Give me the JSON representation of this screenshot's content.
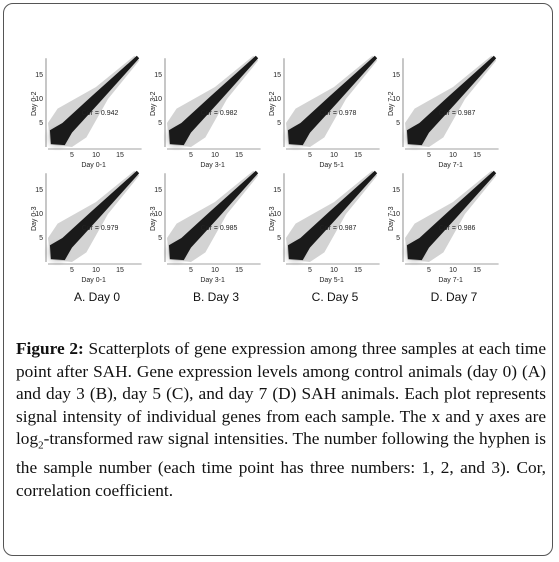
{
  "figure": {
    "panels": [
      {
        "ylabel": "Day 0-2",
        "xlabel": "Day 0-1",
        "cor": "Cor = 0.942",
        "xticks": [
          5,
          10,
          15
        ],
        "yticks": [
          5,
          10,
          15
        ]
      },
      {
        "ylabel": "Day 3-2",
        "xlabel": "Day 3-1",
        "cor": "Cor = 0.982",
        "xticks": [
          5,
          10,
          15
        ],
        "yticks": [
          5,
          10,
          15
        ]
      },
      {
        "ylabel": "Day 5-2",
        "xlabel": "Day 5-1",
        "cor": "Cor = 0.978",
        "xticks": [
          5,
          10,
          15
        ],
        "yticks": [
          5,
          10,
          15
        ]
      },
      {
        "ylabel": "Day 7-2",
        "xlabel": "Day 7-1",
        "cor": "Cor = 0.987",
        "xticks": [
          5,
          10,
          15
        ],
        "yticks": [
          5,
          10,
          15
        ]
      },
      {
        "ylabel": "Day 0-3",
        "xlabel": "Day 0-1",
        "cor": "Cor = 0.979",
        "xticks": [
          5,
          10,
          15
        ],
        "yticks": [
          5,
          10,
          15
        ]
      },
      {
        "ylabel": "Day 3-3",
        "xlabel": "Day 3-1",
        "cor": "Cor = 0.985",
        "xticks": [
          5,
          10,
          15
        ],
        "yticks": [
          5,
          10,
          15
        ]
      },
      {
        "ylabel": "Day 5-3",
        "xlabel": "Day 5-1",
        "cor": "Cor = 0.987",
        "xticks": [
          5,
          10,
          15
        ],
        "yticks": [
          5,
          10,
          15
        ]
      },
      {
        "ylabel": "Day 7-3",
        "xlabel": "Day 7-1",
        "cor": "Cor = 0.986",
        "xticks": [
          5,
          10,
          15
        ],
        "yticks": [
          5,
          10,
          15
        ]
      }
    ],
    "column_labels": [
      "A. Day 0",
      "B. Day 3",
      "C. Day 5",
      "D. Day 7"
    ]
  },
  "caption": {
    "label": "Figure 2:",
    "text_before": " Scatterplots of gene expression among three samples at each time point after SAH. Gene expression levels among control animals (day 0) (A) and day 3 (B), day 5 (C), and day 7 (D) SAH animals. Each plot represents signal intensity of individual genes from each sample. The x and y axes are log",
    "subscript": "2",
    "text_after": "-transformed raw signal intensities. The number following the hyphen is the sample number (each time point has three numbers: 1, 2, and 3). Cor, correlation coefficient."
  }
}
